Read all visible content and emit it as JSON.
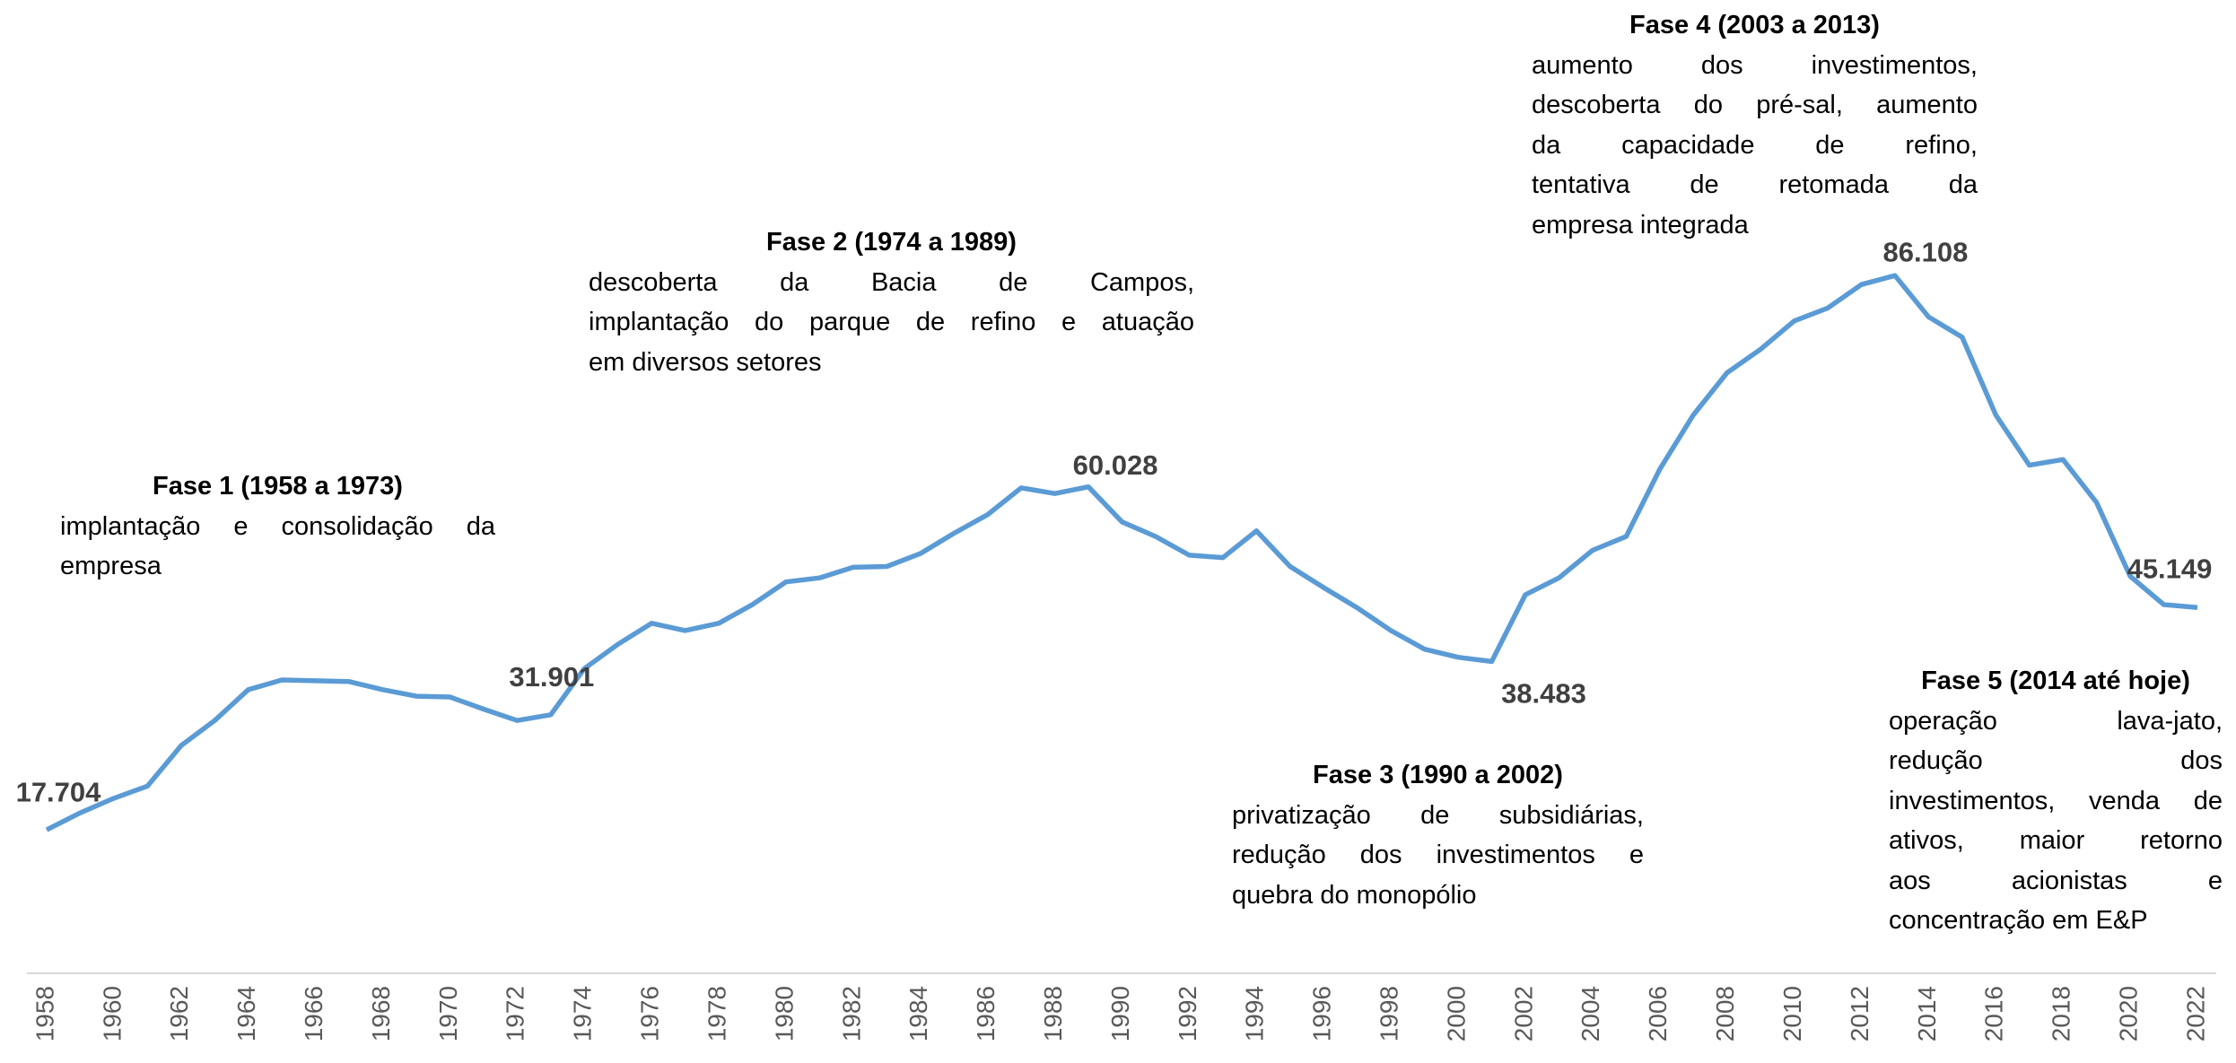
{
  "chart_data": {
    "type": "line",
    "x": [
      1958,
      1959,
      1960,
      1961,
      1962,
      1963,
      1964,
      1965,
      1966,
      1967,
      1968,
      1969,
      1970,
      1971,
      1972,
      1973,
      1974,
      1975,
      1976,
      1977,
      1978,
      1979,
      1980,
      1981,
      1982,
      1983,
      1984,
      1985,
      1986,
      1987,
      1988,
      1989,
      1990,
      1991,
      1992,
      1993,
      1994,
      1995,
      1996,
      1997,
      1998,
      1999,
      2000,
      2001,
      2002,
      2003,
      2004,
      2005,
      2006,
      2007,
      2008,
      2009,
      2010,
      2011,
      2012,
      2013,
      2014,
      2015,
      2016,
      2017,
      2018,
      2019,
      2020,
      2021,
      2022
    ],
    "values": [
      17.704,
      19.8,
      21.6,
      23.1,
      28.1,
      31.2,
      35.0,
      36.2,
      36.1,
      36.0,
      35.0,
      34.2,
      34.1,
      32.6,
      31.2,
      31.901,
      37.6,
      40.6,
      43.2,
      42.3,
      43.2,
      45.5,
      48.3,
      48.8,
      50.1,
      50.2,
      51.8,
      54.3,
      56.6,
      59.9,
      59.2,
      60.028,
      55.7,
      53.9,
      51.6,
      51.3,
      54.6,
      50.2,
      47.6,
      45.1,
      42.3,
      40.0,
      39.0,
      38.483,
      46.7,
      48.8,
      52.2,
      53.9,
      62.2,
      68.9,
      74.1,
      77.0,
      80.5,
      82.1,
      85.0,
      86.108,
      81.0,
      78.5,
      68.9,
      62.7,
      63.4,
      58.1,
      49.0,
      45.5,
      45.149
    ],
    "value_labels": [
      "17.704",
      null,
      null,
      null,
      null,
      null,
      null,
      null,
      null,
      null,
      null,
      null,
      null,
      null,
      null,
      "31.901",
      null,
      null,
      null,
      null,
      null,
      null,
      null,
      null,
      null,
      null,
      null,
      null,
      null,
      null,
      null,
      "60.028",
      null,
      null,
      null,
      null,
      null,
      null,
      null,
      null,
      null,
      null,
      null,
      "38.483",
      null,
      null,
      null,
      null,
      null,
      null,
      null,
      null,
      null,
      null,
      null,
      "86.108",
      null,
      null,
      null,
      null,
      null,
      null,
      null,
      null,
      "45.149"
    ],
    "color": "#5b9bd5",
    "xlim": [
      1958,
      2022
    ],
    "xticks": [
      1958,
      1960,
      1962,
      1964,
      1966,
      1968,
      1970,
      1972,
      1974,
      1976,
      1978,
      1980,
      1982,
      1984,
      1986,
      1988,
      1990,
      1992,
      1994,
      1996,
      1998,
      2000,
      2002,
      2004,
      2006,
      2008,
      2010,
      2012,
      2014,
      2016,
      2018,
      2020,
      2022
    ],
    "ylim": [
      0,
      120
    ],
    "annotations": [
      {
        "title": "Fase 1 (1958 a 1973)",
        "lines": [
          "implantação e consolidação da",
          "empresa"
        ]
      },
      {
        "title": "Fase 2 (1974 a 1989)",
        "lines": [
          "descoberta da Bacia de Campos,",
          "implantação do parque de refino e atuação",
          "em diversos setores"
        ]
      },
      {
        "title": "Fase 3 (1990 a 2002)",
        "lines": [
          "privatização de subsidiárias,",
          "redução dos investimentos e",
          "quebra do monopólio"
        ]
      },
      {
        "title": "Fase 4 (2003 a 2013)",
        "lines": [
          "aumento dos investimentos,",
          "descoberta do pré-sal, aumento",
          "da capacidade de refino,",
          "tentativa de retomada da",
          "empresa integrada"
        ]
      },
      {
        "title": "Fase 5 (2014 até hoje)",
        "lines": [
          "operação lava-jato,",
          "redução dos",
          "investimentos, venda de",
          "ativos, maior retorno",
          "aos acionistas e",
          "concentração em E&P"
        ]
      }
    ]
  }
}
